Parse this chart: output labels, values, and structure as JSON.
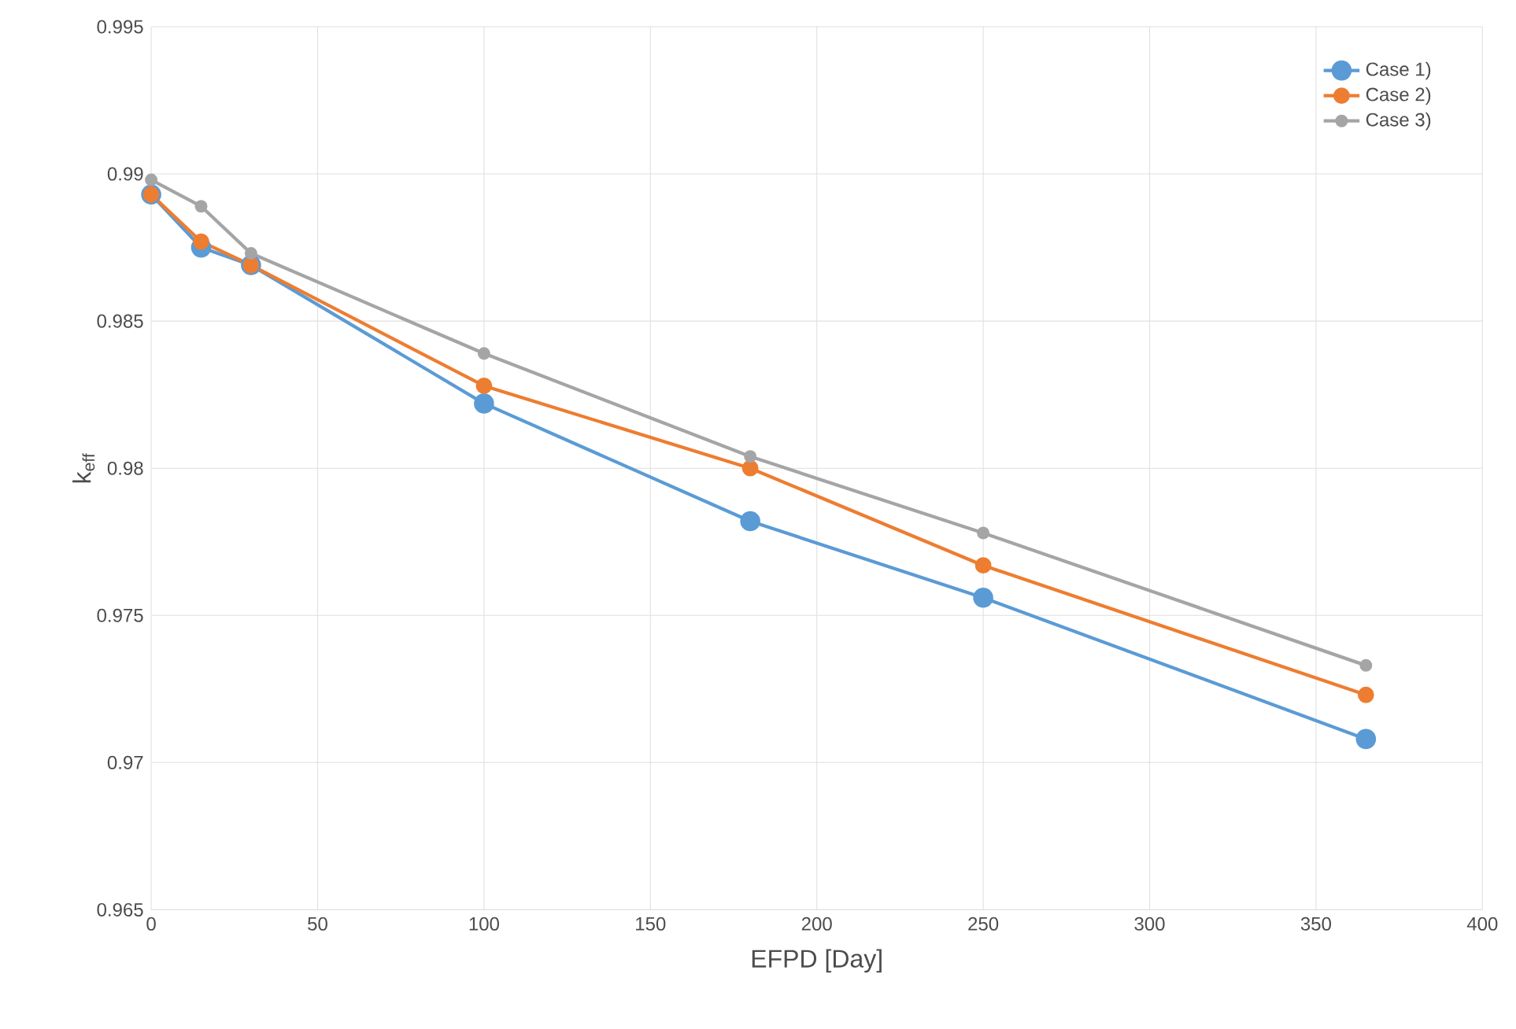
{
  "chart_data": {
    "type": "line",
    "xlabel": "EFPD [Day]",
    "ylabel": "k$_{eff}$",
    "x": [
      0,
      15,
      30,
      100,
      180,
      250,
      365
    ],
    "series": [
      {
        "name": "Case 1)",
        "color": "#5b9bd5",
        "values": [
          0.9893,
          0.9875,
          0.9869,
          0.9822,
          0.9782,
          0.9756,
          0.9708
        ]
      },
      {
        "name": "Case 2)",
        "color": "#ed7d31",
        "values": [
          0.9893,
          0.9877,
          0.9869,
          0.9828,
          0.98,
          0.9767,
          0.9723
        ]
      },
      {
        "name": "Case 3)",
        "color": "#a5a5a5",
        "values": [
          0.9898,
          0.9889,
          0.9873,
          0.9839,
          0.9804,
          0.9778,
          0.9733
        ]
      }
    ],
    "xlim": [
      0,
      400
    ],
    "xticks": [
      0,
      50,
      100,
      150,
      200,
      250,
      300,
      350,
      400
    ],
    "ylim": [
      0.965,
      0.995
    ],
    "yticks": [
      0.965,
      0.97,
      0.975,
      0.98,
      0.985,
      0.99,
      0.995
    ],
    "grid": true,
    "legend": "top right",
    "marker": "circle",
    "line_style": "solid"
  }
}
